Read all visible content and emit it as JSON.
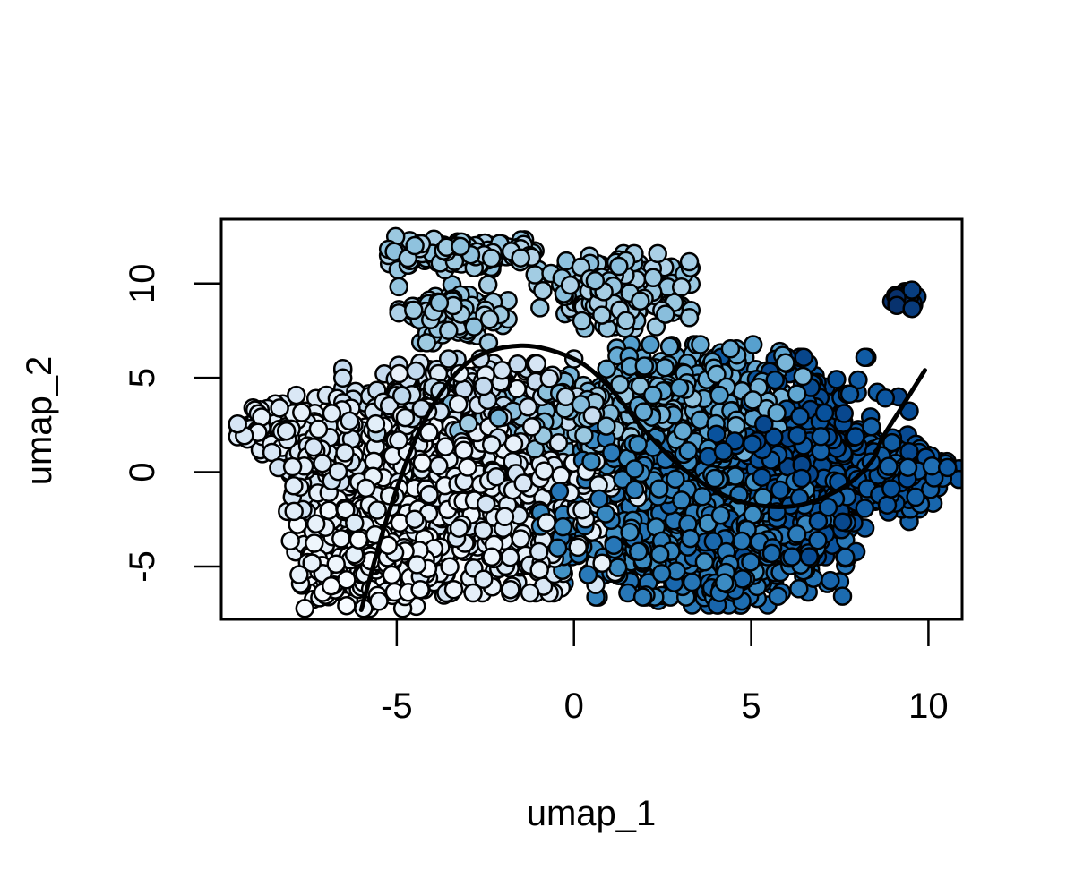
{
  "chart_data": {
    "type": "scatter",
    "title": "",
    "xlabel": "umap_1",
    "ylabel": "umap_2",
    "xlim": [
      -9.95,
      10.95
    ],
    "ylim": [
      -7.8,
      13.4
    ],
    "x_ticks": [
      -5,
      0,
      5,
      10
    ],
    "y_ticks": [
      -5,
      0,
      5,
      10
    ],
    "grid": false,
    "legend": "none",
    "color_scale": {
      "name": "Blues",
      "low": "#f7fbff",
      "high": "#08306b",
      "stops": [
        "#f7fbff",
        "#deebf7",
        "#c6dbef",
        "#9ecae1",
        "#6baed6",
        "#4292c6",
        "#2171b5",
        "#08519c",
        "#08306b"
      ]
    },
    "point_style": {
      "fill": "color_scale",
      "edge": "#000000",
      "marker": "filled-circle"
    },
    "clusters": [
      {
        "id": "left-arm",
        "center": [
          -8.5,
          2.3
        ],
        "spread": [
          0.45,
          0.6
        ],
        "n": 120,
        "shade": 0.12
      },
      {
        "id": "left-arm-bridge",
        "center": [
          -7.2,
          1.0
        ],
        "spread": [
          0.6,
          1.4
        ],
        "n": 120,
        "shade": 0.14
      },
      {
        "id": "lower-left",
        "center": [
          -5.8,
          -4.8
        ],
        "spread": [
          1.0,
          1.1
        ],
        "n": 260,
        "shade": 0.03
      },
      {
        "id": "left-body",
        "center": [
          -4.2,
          -0.5
        ],
        "spread": [
          1.4,
          2.6
        ],
        "n": 560,
        "shade": 0.08
      },
      {
        "id": "upper-left-band",
        "center": [
          -3.0,
          3.8
        ],
        "spread": [
          1.6,
          1.0
        ],
        "n": 300,
        "shade": 0.22
      },
      {
        "id": "center-left-body",
        "center": [
          -1.5,
          -2.0
        ],
        "spread": [
          1.5,
          2.0
        ],
        "n": 460,
        "shade": 0.12
      },
      {
        "id": "mid-band",
        "center": [
          0.5,
          3.2
        ],
        "spread": [
          1.8,
          0.9
        ],
        "n": 260,
        "shade": 0.42
      },
      {
        "id": "top-left-island",
        "center": [
          -3.3,
          11.6
        ],
        "spread": [
          1.0,
          0.4
        ],
        "n": 140,
        "shade": 0.36
      },
      {
        "id": "top-left-island-lower",
        "center": [
          -3.4,
          8.4
        ],
        "spread": [
          0.7,
          0.7
        ],
        "n": 120,
        "shade": 0.36
      },
      {
        "id": "top-mid-island",
        "center": [
          1.1,
          9.6
        ],
        "spread": [
          1.0,
          0.9
        ],
        "n": 190,
        "shade": 0.37
      },
      {
        "id": "central-body",
        "center": [
          2.8,
          -2.0
        ],
        "spread": [
          1.7,
          2.1
        ],
        "n": 620,
        "shade": 0.68
      },
      {
        "id": "center-right-band",
        "center": [
          3.6,
          3.9
        ],
        "spread": [
          1.3,
          1.3
        ],
        "n": 320,
        "shade": 0.52
      },
      {
        "id": "lower-right-body",
        "center": [
          4.8,
          -4.4
        ],
        "spread": [
          1.3,
          1.2
        ],
        "n": 300,
        "shade": 0.74
      },
      {
        "id": "right-body",
        "center": [
          6.6,
          0.8
        ],
        "spread": [
          1.3,
          2.4
        ],
        "n": 520,
        "shade": 0.86
      },
      {
        "id": "far-right-tail",
        "center": [
          9.1,
          -0.2
        ],
        "spread": [
          0.8,
          0.8
        ],
        "n": 200,
        "shade": 0.82
      },
      {
        "id": "far-right-island",
        "center": [
          9.35,
          9.1
        ],
        "spread": [
          0.2,
          0.25
        ],
        "n": 40,
        "shade": 0.98
      }
    ],
    "trajectory": {
      "x": [
        -6.0,
        -5.2,
        -4.2,
        -3.0,
        -1.5,
        0.0,
        1.0,
        2.0,
        3.2,
        4.6,
        6.2,
        7.6,
        8.4,
        8.7,
        9.2,
        9.9
      ],
      "y": [
        -7.3,
        -2.0,
        2.8,
        5.8,
        6.7,
        6.0,
        4.5,
        2.2,
        0.0,
        -1.5,
        -1.8,
        -0.8,
        0.6,
        1.8,
        3.3,
        5.4
      ]
    }
  }
}
